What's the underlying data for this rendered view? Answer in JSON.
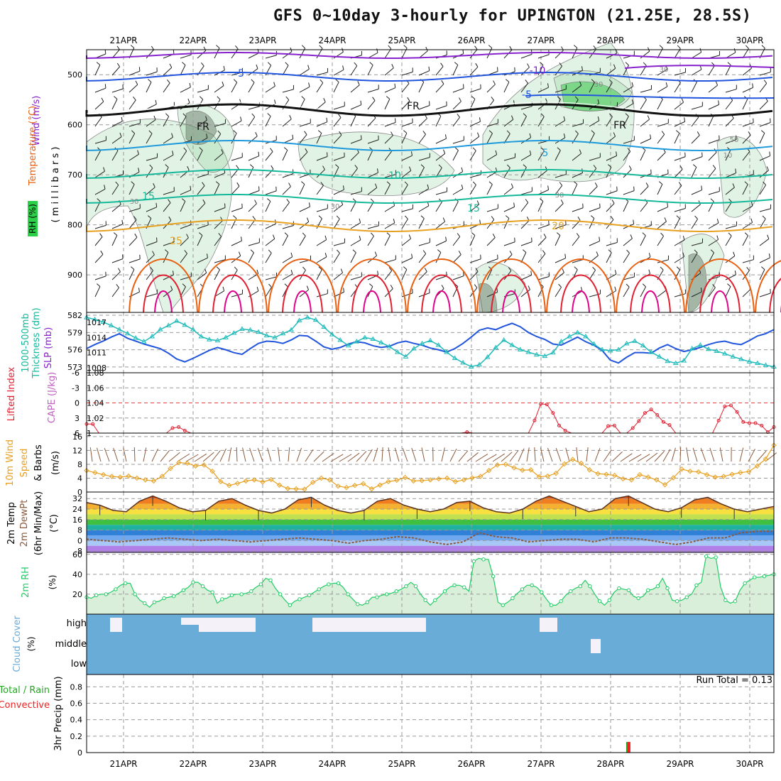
{
  "title": "GFS 0~10day 3-hourly for UPINGTON (21.25E, 28.5S)",
  "run_total": "Run Total = 0.13",
  "colors": {
    "purple": "#8822cc",
    "blue": "#2255dd",
    "lightblue": "#1e9adc",
    "teal": "#14b89a",
    "green": "#22cc66",
    "orange": "#e8a020",
    "darkorange": "#e86010",
    "red": "#e02030",
    "magenta": "#e0008a",
    "cyan": "#22bbbb",
    "brown": "#8b5a3c",
    "cloud": "#6aacd8",
    "precip_red": "#ee2222",
    "precip_green": "#22aa22"
  },
  "chart_data": [
    {
      "type": "contour",
      "name": "upper-air cross-section",
      "ylabel": "Temperature (°C) Wind (m/s)",
      "ylabel_parts": [
        "Wind (m/s)",
        "Temperature (°C)",
        "( m i l l i b a r s )",
        "RH (%)"
      ],
      "ylim": [
        975,
        450
      ],
      "yticks": [
        500,
        600,
        700,
        800,
        900
      ],
      "dates_top": [
        "21APR",
        "22APR",
        "23APR",
        "24APR",
        "25APR",
        "26APR",
        "27APR",
        "28APR",
        "29APR",
        "30APR"
      ],
      "contour_labels": [
        {
          "t": "-10",
          "c": "purple"
        },
        {
          "t": "-5",
          "c": "blue"
        },
        {
          "t": "-5",
          "c": "blue"
        },
        {
          "t": "FR",
          "c": "black"
        },
        {
          "t": "FR",
          "c": "black"
        },
        {
          "t": "FR",
          "c": "black"
        },
        {
          "t": "5",
          "c": "lightblue"
        },
        {
          "t": "10",
          "c": "teal"
        },
        {
          "t": "15",
          "c": "teal"
        },
        {
          "t": "15",
          "c": "teal"
        },
        {
          "t": "20",
          "c": "orange"
        },
        {
          "t": "25",
          "c": "orange"
        },
        {
          "t": "30",
          "c": "gray"
        },
        {
          "t": "30",
          "c": "gray"
        },
        {
          "t": "30",
          "c": "gray"
        },
        {
          "t": "30",
          "c": "gray"
        },
        {
          "t": "30",
          "c": "gray"
        },
        {
          "t": "50",
          "c": "gray"
        },
        {
          "t": "10",
          "c": "gray"
        }
      ]
    },
    {
      "type": "line",
      "name": "thickness & slp",
      "ylabel_left": "1000-500mb Thickness (dm)",
      "ylabel_right": "SLP (mb)",
      "yticks_left": [
        573,
        576,
        579,
        582
      ],
      "yticks_right": [
        1008,
        1011,
        1014,
        1017
      ],
      "ylim_left": [
        572,
        582.5
      ],
      "ylim_right": [
        1007,
        1019
      ],
      "series": [
        {
          "name": "1000-500mb Thickness (dm)",
          "color": "blue",
          "values": [
            576.2,
            576.9,
            577.5,
            578.2,
            578.8,
            578.0,
            577.5,
            577.0,
            576.6,
            576.2,
            575.4,
            574.4,
            573.9,
            574.5,
            575.2,
            575.9,
            576.4,
            576.0,
            575.5,
            575.2,
            576.2,
            577.1,
            577.5,
            577.4,
            577.1,
            577.7,
            578.5,
            578.4,
            577.5,
            576.5,
            576.1,
            576.4,
            577.0,
            577.4,
            577.2,
            576.7,
            576.4,
            576.6,
            577.2,
            577.5,
            577.1,
            576.8,
            576.3,
            576.0,
            575.6,
            576.2,
            577.1,
            578.2,
            579.4,
            579.8,
            579.5,
            580.1,
            580.6,
            580.0,
            579.0,
            578.3,
            577.8,
            577.0,
            576.8,
            577.5,
            578.2,
            577.4,
            576.8,
            575.9,
            574.2,
            573.7,
            574.7,
            575.5,
            575.5,
            575.4,
            576.3,
            576.9,
            576.2,
            575.7,
            576.0,
            576.4,
            576.9,
            577.3,
            577.5,
            577.1,
            576.9,
            577.6,
            578.4,
            578.8,
            579.5
          ]
        },
        {
          "name": "SLP (mb)",
          "color": "cyan",
          "values": [
            1018.0,
            1017.6,
            1017.1,
            1016.4,
            1015.6,
            1014.8,
            1013.9,
            1013.2,
            1014.2,
            1015.6,
            1016.4,
            1017.3,
            1016.5,
            1015.6,
            1014.2,
            1013.6,
            1013.4,
            1014.0,
            1014.9,
            1015.7,
            1015.5,
            1015.1,
            1014.4,
            1014.0,
            1014.8,
            1015.5,
            1017.4,
            1018.0,
            1017.5,
            1016.1,
            1014.6,
            1013.5,
            1012.4,
            1013.2,
            1014.0,
            1013.7,
            1013.0,
            1012.2,
            1011.1,
            1010.2,
            1011.8,
            1012.8,
            1013.4,
            1012.5,
            1011.1,
            1009.9,
            1009.0,
            1008.2,
            1008.6,
            1010.1,
            1012.0,
            1013.5,
            1012.5,
            1011.6,
            1011.1,
            1010.6,
            1010.3,
            1011.0,
            1013.2,
            1014.2,
            1015.0,
            1014.2,
            1012.7,
            1011.6,
            1011.4,
            1011.6,
            1012.8,
            1013.3,
            1012.4,
            1011.1,
            1010.2,
            1009.3,
            1008.9,
            1009.4,
            1011.8,
            1012.5,
            1011.7,
            1011.3,
            1010.8,
            1010.2,
            1009.7,
            1009.2,
            1008.9,
            1008.5,
            1008.2
          ]
        }
      ]
    },
    {
      "type": "line",
      "name": "lifted index & cape",
      "ylabel_left": "Lifted Index",
      "ylabel_right": "CAPE (J/kg)",
      "yticks_left": [
        "-6",
        "-3",
        "0",
        "3",
        "6"
      ],
      "yticks_right": [
        "1.08",
        "1.06",
        "1.04",
        "1.02",
        "1"
      ],
      "ylim": [
        -6,
        6
      ],
      "series": [
        {
          "name": "Lifted Index",
          "color": "red",
          "values": [
            4.2,
            4.2,
            6,
            6,
            6,
            6,
            6,
            6,
            6,
            6,
            6,
            6,
            6,
            6,
            5.0,
            4.8,
            5.5,
            6,
            6,
            6,
            6,
            6,
            6,
            6,
            6,
            6,
            6,
            6,
            6,
            6,
            6,
            6,
            6,
            6,
            6,
            6,
            6,
            6,
            6,
            6,
            6,
            6,
            6,
            6,
            6,
            6,
            6,
            6,
            6,
            6,
            6,
            6,
            6,
            6,
            6,
            6,
            6,
            6,
            6,
            6,
            6,
            6,
            5.8,
            6,
            6,
            6,
            6,
            6,
            6,
            6,
            6,
            6,
            6,
            3.5,
            0.2,
            0.3,
            2.0,
            4.5,
            5.5,
            6,
            6,
            6,
            6,
            6,
            6,
            4.6,
            4.5,
            6,
            6,
            5.0,
            3.6,
            2.0,
            1.3,
            2.4,
            3.8,
            4.4,
            6,
            6,
            6,
            6,
            6,
            6,
            6,
            3.5,
            0.7,
            0.5,
            1.8,
            3.8,
            4.0,
            4.0,
            4.5,
            5.8,
            4.8
          ]
        }
      ]
    },
    {
      "type": "line",
      "name": "10m wind",
      "ylabel": "10m Wind Speed & Barbs (m/s)",
      "ylabel_parts": [
        "10m Wind",
        "Speed",
        "& Barbs",
        "(m/s)"
      ],
      "yticks": [
        0,
        4,
        8,
        12,
        16
      ],
      "ylim": [
        0,
        17
      ],
      "series": [
        {
          "name": "10m Wind Speed",
          "color": "orange",
          "values": [
            6.2,
            5.6,
            5.0,
            4.5,
            4.3,
            4.6,
            4.0,
            3.5,
            3.2,
            4.5,
            6.8,
            8.5,
            8.3,
            7.5,
            7.8,
            6.0,
            3.0,
            1.9,
            2.5,
            3.2,
            3.5,
            2.9,
            3.6,
            2.0,
            1.0,
            0.9,
            0.8,
            2.8,
            4.0,
            3.5,
            1.7,
            1.3,
            1.9,
            2.4,
            0.9,
            2.0,
            3.0,
            3.4,
            4.2,
            3.2,
            3.3,
            3.5,
            3.8,
            4.0,
            3.0,
            3.5,
            4.1,
            4.5,
            6.2,
            7.8,
            8.0,
            7.0,
            6.3,
            6.4,
            4.4,
            4.6,
            5.4,
            8.1,
            9.4,
            8.3,
            6.4,
            5.3,
            5.1,
            4.8,
            3.8,
            3.5,
            5.0,
            4.3,
            3.5,
            2.1,
            4.1,
            6.6,
            6.0,
            5.8,
            5.0,
            4.3,
            4.5,
            5.1,
            5.6,
            5.9,
            7.5,
            9.5,
            13.5
          ]
        }
      ]
    },
    {
      "type": "area",
      "name": "2m temperature",
      "ylabel": "2m Temp 2m DewPt (6hr Min/Max) (°C)",
      "ylabel_parts": [
        "2m Temp",
        "2m DewPt",
        "(6hr Min/Max)",
        "(°C)"
      ],
      "yticks": [
        -8,
        0,
        8,
        16,
        24,
        32
      ],
      "ylim": [
        -9,
        37
      ],
      "series": [
        {
          "name": "2m Temp",
          "color": "brown",
          "values": [
            29,
            27,
            23,
            22,
            30,
            34,
            30,
            25,
            22,
            23,
            30,
            32,
            27,
            23,
            21,
            24,
            31,
            33,
            27,
            23,
            21,
            23,
            30,
            32,
            27,
            24,
            22,
            24,
            29,
            30,
            25,
            22,
            21,
            24,
            30,
            34,
            30,
            26,
            22,
            24,
            32,
            34,
            29,
            24,
            22,
            25,
            31,
            33,
            28,
            24,
            22,
            24,
            26
          ]
        },
        {
          "name": "2m DewPt",
          "color": "brown",
          "values": [
            1,
            0,
            -1,
            0,
            1,
            2,
            1,
            0,
            1,
            0,
            -1,
            0,
            1,
            2,
            1,
            0,
            -2,
            0,
            1,
            3,
            2,
            -1,
            -3,
            -1,
            6,
            3,
            2,
            -1,
            0,
            1,
            1,
            -1,
            2,
            2,
            1,
            -1,
            -3,
            -1,
            2,
            2,
            6,
            7,
            7
          ]
        }
      ]
    },
    {
      "type": "line",
      "name": "2m relative humidity",
      "ylabel": "2m RH (%)",
      "yticks": [
        20,
        40,
        60
      ],
      "ylim": [
        0,
        62
      ],
      "series": [
        {
          "name": "2m RH",
          "color": "green",
          "values": [
            17,
            16,
            19,
            20,
            20,
            22,
            25,
            29,
            31,
            31,
            20,
            14,
            11,
            7,
            12,
            13,
            16,
            17,
            18,
            21,
            24,
            27,
            32,
            32,
            28,
            24,
            22,
            11,
            15,
            16,
            19,
            20,
            20,
            21,
            23,
            27,
            30,
            36,
            34,
            26,
            20,
            14,
            9,
            13,
            15,
            17,
            19,
            22,
            25,
            28,
            30,
            31,
            31,
            27,
            20,
            15,
            10,
            9,
            12,
            17,
            17,
            19,
            20,
            21,
            23,
            25,
            28,
            32,
            28,
            20,
            14,
            9,
            14,
            18,
            23,
            27,
            29,
            29,
            27,
            23,
            53,
            56,
            55,
            55,
            38,
            12,
            9,
            12,
            16,
            21,
            25,
            29,
            29,
            27,
            22,
            15,
            9,
            9,
            13,
            19,
            23,
            26,
            28,
            34,
            28,
            20,
            13,
            9,
            14,
            22,
            26,
            25,
            24,
            18,
            16,
            18,
            24,
            25,
            28,
            36,
            26,
            14,
            13,
            14,
            17,
            20,
            29,
            32,
            58,
            56,
            57,
            27,
            14,
            11,
            13,
            24,
            31,
            34,
            37,
            37,
            38,
            39,
            40
          ]
        }
      ]
    },
    {
      "type": "bar",
      "name": "cloud cover",
      "ylabel": "Cloud Cover (%)",
      "categories": [
        "high",
        "middle",
        "low"
      ]
    },
    {
      "type": "bar",
      "name": "3hr precipitation",
      "ylabel": "3hr Precip (mm)",
      "ylabel_left": "Total / Rain",
      "ylabel_left2": "Convective",
      "yticks": [
        0,
        0.2,
        0.4,
        0.6,
        0.8
      ],
      "ylim": [
        0,
        0.95
      ],
      "dates_bottom": [
        "21APR",
        "22APR",
        "23APR",
        "24APR",
        "25APR",
        "26APR",
        "27APR",
        "28APR",
        "29APR",
        "30APR"
      ],
      "values": [
        {
          "date": "28APR",
          "total": 0.13,
          "convective": 0.13
        }
      ]
    }
  ]
}
